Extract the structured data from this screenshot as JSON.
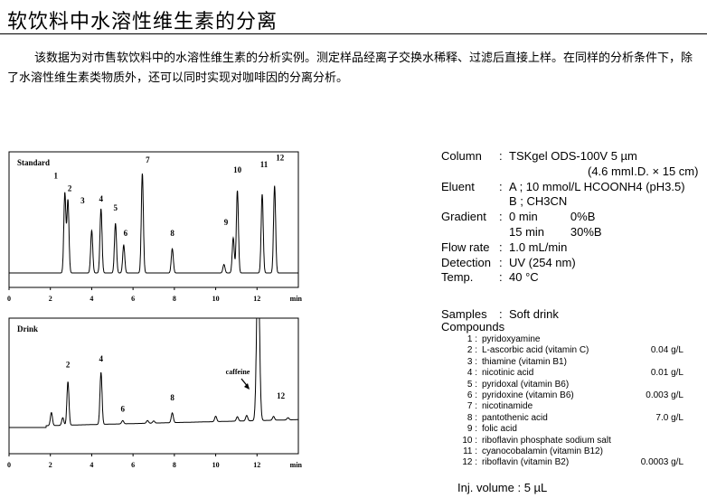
{
  "title": "软饮料中水溶性维生素的分离",
  "intro": "该数据为对市售软饮料中的水溶性维生素的分析实例。测定样品经离子交换水稀释、过滤后直接上样。在同样的分析条件下，除了水溶性维生素类物质外，还可以同时实现对咖啡因的分离分析。",
  "chart_data": [
    {
      "type": "line",
      "title": "Standard",
      "xlabel": "min",
      "xlim": [
        0,
        14
      ],
      "xticks": [
        "0",
        "2",
        "4",
        "6",
        "8",
        "10",
        "12"
      ],
      "grid": false,
      "peaks": [
        {
          "label": "1",
          "rt": 2.7,
          "height": 0.66
        },
        {
          "label": "2",
          "rt": 2.85,
          "height": 0.6
        },
        {
          "label": "3",
          "rt": 4.0,
          "height": 0.35
        },
        {
          "label": "4",
          "rt": 4.45,
          "height": 0.53
        },
        {
          "label": "5",
          "rt": 5.15,
          "height": 0.41
        },
        {
          "label": "6",
          "rt": 5.55,
          "height": 0.23
        },
        {
          "label": "7",
          "rt": 6.45,
          "height": 0.82
        },
        {
          "label": "8",
          "rt": 7.9,
          "height": 0.2
        },
        {
          "label": "",
          "rt": 10.4,
          "height": 0.07
        },
        {
          "label": "9",
          "rt": 10.85,
          "height": 0.29
        },
        {
          "label": "10",
          "rt": 11.05,
          "height": 0.68
        },
        {
          "label": "11",
          "rt": 12.25,
          "height": 0.65
        },
        {
          "label": "12",
          "rt": 12.85,
          "height": 0.72
        }
      ]
    },
    {
      "type": "line",
      "title": "Drink",
      "xlabel": "min",
      "xlim": [
        0,
        14
      ],
      "xticks": [
        "0",
        "2",
        "4",
        "6",
        "8",
        "10",
        "12"
      ],
      "grid": false,
      "annotation": "caffeine",
      "peaks": [
        {
          "label": "",
          "rt": 2.05,
          "height": 0.12
        },
        {
          "label": "",
          "rt": 2.6,
          "height": 0.07
        },
        {
          "label": "2",
          "rt": 2.85,
          "height": 0.4
        },
        {
          "label": "4",
          "rt": 4.45,
          "height": 0.48
        },
        {
          "label": "6",
          "rt": 5.5,
          "height": 0.03
        },
        {
          "label": "",
          "rt": 6.7,
          "height": 0.025
        },
        {
          "label": "",
          "rt": 7.0,
          "height": 0.02
        },
        {
          "label": "8",
          "rt": 7.9,
          "height": 0.09
        },
        {
          "label": "",
          "rt": 10.0,
          "height": 0.05
        },
        {
          "label": "",
          "rt": 11.05,
          "height": 0.04
        },
        {
          "label": "",
          "rt": 11.5,
          "height": 0.05
        },
        {
          "label": "caffeine",
          "rt": 12.05,
          "height": 1.5
        },
        {
          "label": "12",
          "rt": 12.8,
          "height": 0.035
        },
        {
          "label": "",
          "rt": 13.5,
          "height": 0.02
        }
      ]
    }
  ],
  "conditions": [
    {
      "label": "Column",
      "value": "TSKgel ODS-100V 5 µm"
    },
    {
      "label": "",
      "value": "(4.6 mmI.D. × 15 cm)"
    },
    {
      "label": "Eluent",
      "value": "A ; 10 mmol/L HCOONH4 (pH3.5)"
    },
    {
      "label": "",
      "value": "B ; CH3CN"
    },
    {
      "label": "Gradient",
      "value": "0 min          0%B"
    },
    {
      "label": "",
      "value": "15 min        30%B"
    },
    {
      "label": "Flow rate",
      "value": "1.0 mL/min"
    },
    {
      "label": "Detection",
      "value": "UV (254 nm)"
    },
    {
      "label": "Temp.",
      "value": "40 °C"
    }
  ],
  "samples": {
    "label": "Samples",
    "value": "Soft drink"
  },
  "compounds_label": "Compounds",
  "compounds": [
    {
      "no": "1 :",
      "name": "pyridoxyamine",
      "amount": ""
    },
    {
      "no": "2 :",
      "name": "L-ascorbic acid (vitamin C)",
      "amount": "0.04 g/L"
    },
    {
      "no": "3 :",
      "name": "thiamine (vitamin B1)",
      "amount": ""
    },
    {
      "no": "4 :",
      "name": "nicotinic acid",
      "amount": "0.01 g/L"
    },
    {
      "no": "5 :",
      "name": "pyridoxal (vitamin B6)",
      "amount": ""
    },
    {
      "no": "6 :",
      "name": "pyridoxine (vitamin B6)",
      "amount": "0.003 g/L"
    },
    {
      "no": "7 :",
      "name": "nicotinamide",
      "amount": ""
    },
    {
      "no": "8 :",
      "name": "pantothenic acid",
      "amount": "7.0 g/L"
    },
    {
      "no": "9 :",
      "name": "folic acid",
      "amount": ""
    },
    {
      "no": "10 :",
      "name": "riboflavin phosphate sodium salt",
      "amount": ""
    },
    {
      "no": "11 :",
      "name": "cyanocobalamin (vitamin B12)",
      "amount": ""
    },
    {
      "no": "12 :",
      "name": "riboflavin (vitamin B2)",
      "amount": "0.0003 g/L"
    }
  ],
  "injection": "Inj. volume : 5 µL"
}
